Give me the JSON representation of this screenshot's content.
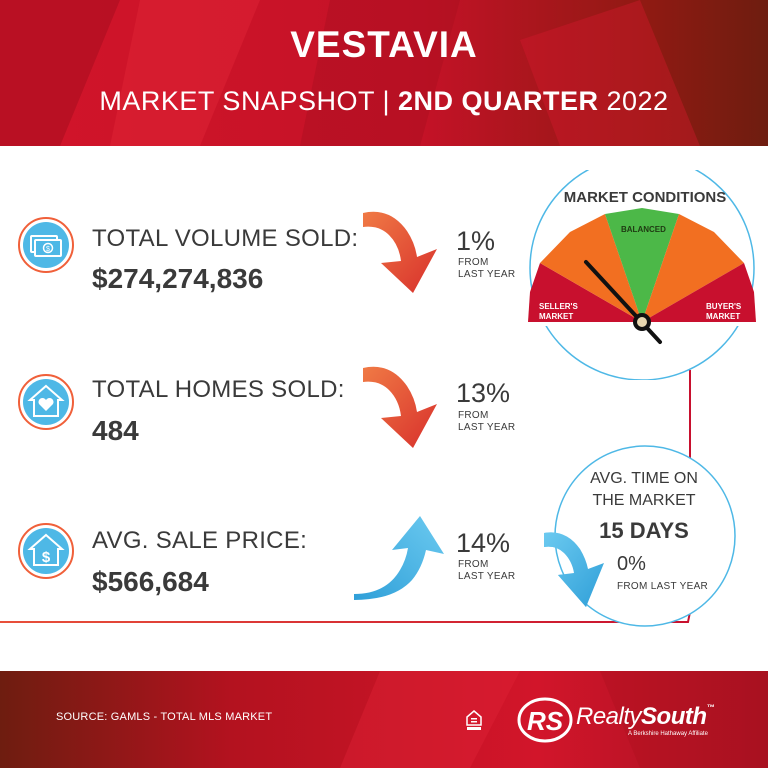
{
  "header": {
    "city": "VESTAVIA",
    "subtitle_part1": "MARKET SNAPSHOT | ",
    "subtitle_bold": "2ND QUARTER",
    "subtitle_year": " 2022"
  },
  "stats": [
    {
      "label": "TOTAL VOLUME SOLD:",
      "value": "$274,274,836",
      "change": "1%",
      "from_line1": "FROM",
      "from_line2": "LAST YEAR",
      "direction": "down",
      "icon": "cash-icon"
    },
    {
      "label": "TOTAL HOMES SOLD:",
      "value": "484",
      "change": "13%",
      "from_line1": "FROM",
      "from_line2": "LAST YEAR",
      "direction": "down",
      "icon": "house-heart-icon"
    },
    {
      "label": "AVG. SALE PRICE:",
      "value": "$566,684",
      "change": "14%",
      "from_line1": "FROM",
      "from_line2": "LAST YEAR",
      "direction": "up",
      "icon": "house-dollar-icon"
    }
  ],
  "market_conditions": {
    "title": "MARKET CONDITIONS",
    "seller_line1": "SELLER'S",
    "seller_line2": "MARKET",
    "balanced": "BALANCED",
    "buyer_line1": "BUYER'S",
    "buyer_line2": "MARKET",
    "indicator": "seller's market"
  },
  "time_on_market": {
    "line1": "AVG. TIME ON",
    "line2": "THE MARKET",
    "days": "15 DAYS",
    "change": "0%",
    "from": "FROM LAST YEAR",
    "direction": "down"
  },
  "footer": {
    "source": "SOURCE: GAMLS - TOTAL MLS MARKET",
    "logo_mark": "RS",
    "brand_part1": "Realty",
    "brand_part2": "South",
    "tm": "™",
    "tagline": "A Berkshire Hathaway Affiliate"
  },
  "colors": {
    "header_red": "#c8102e",
    "dark_red": "#7a1a10",
    "down_arrow": "#e8503a",
    "up_arrow": "#3aaee0",
    "seller_red": "#c8102e",
    "mid_orange": "#f26f21",
    "balanced_green": "#4cb848",
    "icon_blue": "#4eb8e6"
  }
}
